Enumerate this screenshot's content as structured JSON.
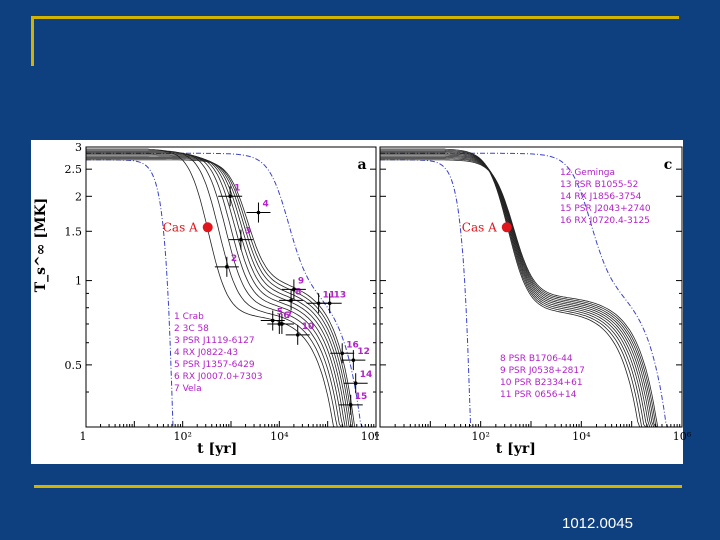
{
  "slide": {
    "number": "1012.0045"
  },
  "colors": {
    "background": "#0e3f7e",
    "accent": "#d2b400",
    "label": "#b321c9",
    "casa": "#e0161c",
    "dash": "#3a43c9"
  },
  "chart_data": [
    {
      "type": "line",
      "panel_letter": "a",
      "title": "",
      "xlabel": "t  [yr]",
      "ylabel": "T_s^∞ [MK]",
      "xscale": "log",
      "yscale": "log",
      "xlim": [
        1,
        1000000
      ],
      "ylim": [
        0.3,
        3
      ],
      "x_tick_labels": [
        "1",
        "10²",
        "10⁴",
        "10⁶"
      ],
      "y_tick_labels": [
        "0.5",
        "1",
        "1.5",
        "2",
        "2.5",
        "3"
      ],
      "casa_label": "Cas A",
      "casa_point": {
        "t": 330,
        "T": 1.55
      },
      "legend": [
        "1 Crab",
        "2 3C 58",
        "3 PSR J1119-6127",
        "4 RX J0822-43",
        "5 PSR J1357-6429",
        "6 RX J0007.0+7303",
        "7 Vela"
      ],
      "sources": [
        {
          "id": "1",
          "t": 960,
          "T": 2.0
        },
        {
          "id": "4",
          "t": 3700,
          "T": 1.75
        },
        {
          "id": "3",
          "t": 1600,
          "T": 1.4
        },
        {
          "id": "2",
          "t": 820,
          "T": 1.12
        },
        {
          "id": "8",
          "t": 17500,
          "T": 0.85
        },
        {
          "id": "9",
          "t": 20000,
          "T": 0.93
        },
        {
          "id": "11",
          "t": 65000,
          "T": 0.83
        },
        {
          "id": "13",
          "t": 110000,
          "T": 0.83
        },
        {
          "id": "5",
          "t": 7300,
          "T": 0.72
        },
        {
          "id": "6",
          "t": 10000,
          "T": 0.7
        },
        {
          "id": "7",
          "t": 11300,
          "T": 0.7
        },
        {
          "id": "10",
          "t": 24000,
          "T": 0.64
        },
        {
          "id": "12",
          "t": 340000,
          "T": 0.52
        },
        {
          "id": "16",
          "t": 200000,
          "T": 0.55
        },
        {
          "id": "14",
          "t": 380000,
          "T": 0.43
        },
        {
          "id": "15",
          "t": 300000,
          "T": 0.36
        }
      ],
      "source_label_positions_omitted": true
    },
    {
      "type": "line",
      "panel_letter": "c",
      "title": "",
      "xlabel": "t  [yr]",
      "ylabel": "",
      "xscale": "log",
      "yscale": "log",
      "xlim": [
        1,
        1000000
      ],
      "ylim": [
        0.3,
        3
      ],
      "x_tick_labels": [
        "1",
        "10²",
        "10⁴",
        "10⁶"
      ],
      "casa_label": "Cas A",
      "casa_point": {
        "t": 330,
        "T": 1.55
      },
      "legend_top": [
        "12 Geminga",
        "13 PSR B1055-52",
        "14 RX J1856-3754",
        "15 PSR J2043+2740",
        "16 RX J0720.4-3125"
      ],
      "legend_bottom": [
        "8  PSR B1706-44",
        "9  PSR J0538+2817",
        "10 PSR B2334+61",
        "11 PSR 0656+14"
      ]
    }
  ]
}
